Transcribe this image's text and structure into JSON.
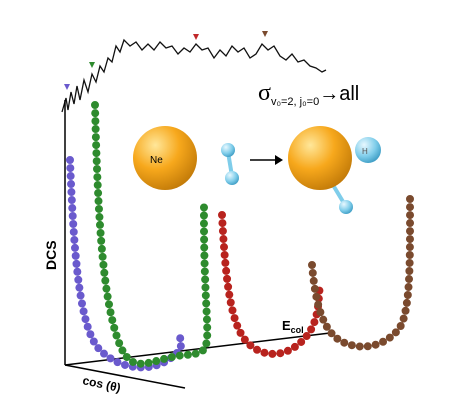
{
  "labels": {
    "y_axis": "DCS",
    "x_axis": "cos (θ)",
    "z_axis": {
      "main": "E",
      "sub": "col"
    },
    "cross_section": {
      "symbol": "σ",
      "sub": "v₀=2, j₀=0",
      "tail": "→all"
    }
  },
  "reaction": {
    "reactant_atom": "Ne",
    "product_atom": "H"
  }
}
